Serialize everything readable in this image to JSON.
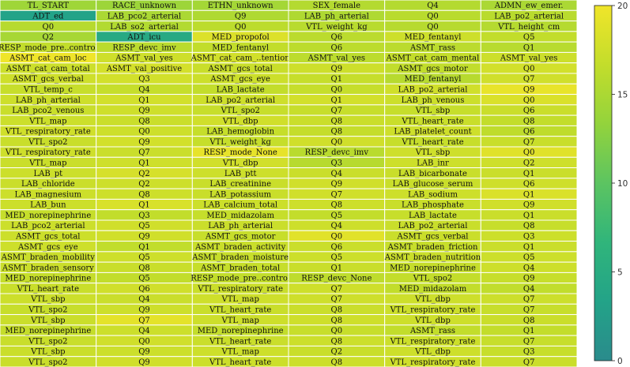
{
  "chart_data": {
    "type": "heatmap",
    "colormap": "viridis-subset (teal to yellow)",
    "cell_border_color": "#ffffff",
    "colorbar": {
      "min": 0,
      "max": 20,
      "ticks": [
        0,
        5,
        10,
        15,
        20
      ],
      "stops": [
        "#2a8b8c",
        "#23a388",
        "#30b57b",
        "#5cc461",
        "#93d33c",
        "#c3dd2b",
        "#f0e52a"
      ]
    },
    "cells": [
      [
        [
          "TL_START",
          14.2
        ],
        [
          "RACE_unknown",
          14.0
        ],
        [
          "ETHN_unknown",
          14.5
        ],
        [
          "SEX_female",
          15.6
        ],
        [
          "Q4",
          15.6
        ],
        [
          "ADMN_ew_emer.",
          15.0
        ]
      ],
      [
        [
          "ADT_ed",
          3.4
        ],
        [
          "LAB_pco2_arterial",
          15.0
        ],
        [
          "Q9",
          15.3
        ],
        [
          "LAB_ph_arterial",
          15.3
        ],
        [
          "Q0",
          16.0
        ],
        [
          "LAB_po2_arterial",
          16.0
        ]
      ],
      [
        [
          "Q0",
          15.8
        ],
        [
          "LAB_so2_arterial",
          15.5
        ],
        [
          "Q0",
          16.2
        ],
        [
          "VTL_weight_kg",
          15.9
        ],
        [
          "Q0",
          15.8
        ],
        [
          "VTL_height_cm",
          15.7
        ]
      ],
      [
        [
          "Q2",
          14.7
        ],
        [
          "ADT_icu",
          4.5
        ],
        [
          "MED_propofol",
          18.5
        ],
        [
          "Q6",
          16.1
        ],
        [
          "MED_fentanyl",
          17.4
        ],
        [
          "Q5",
          16.6
        ]
      ],
      [
        [
          "RESP_mode_pre..control",
          16.6
        ],
        [
          "RESP_devc_imv",
          16.1
        ],
        [
          "MED_fentanyl",
          16.6
        ],
        [
          "Q6",
          16.2
        ],
        [
          "ASMT_rass",
          16.1
        ],
        [
          "Q1",
          15.9
        ]
      ],
      [
        [
          "ASMT_cat_cam_loc",
          19.9
        ],
        [
          "ASMT_val_yes",
          17.5
        ],
        [
          "ASMT_cat_cam_..tention",
          17.7
        ],
        [
          "ASMT_val_yes",
          16.2
        ],
        [
          "ASMT_cat_cam_mental",
          16.7
        ],
        [
          "ASMT_val_yes",
          17.3
        ]
      ],
      [
        [
          "ASMT_cat_cam_total",
          17.3
        ],
        [
          "ASMT_val_positive",
          17.9
        ],
        [
          "ASMT_gcs_total",
          17.1
        ],
        [
          "Q9",
          17.4
        ],
        [
          "ASMT_gcs_motor",
          16.5
        ],
        [
          "Q0",
          17.8
        ]
      ],
      [
        [
          "ASMT_gcs_verbal",
          17.5
        ],
        [
          "Q3",
          17.8
        ],
        [
          "ASMT_gcs_eye",
          17.3
        ],
        [
          "Q1",
          16.9
        ],
        [
          "MED_fentanyl",
          15.8
        ],
        [
          "Q7",
          17.6
        ]
      ],
      [
        [
          "VTL_temp_c",
          17.0
        ],
        [
          "Q4",
          16.9
        ],
        [
          "LAB_lactate",
          16.7
        ],
        [
          "Q0",
          16.9
        ],
        [
          "LAB_po2_arterial",
          17.6
        ],
        [
          "Q9",
          19.4
        ]
      ],
      [
        [
          "LAB_ph_arterial",
          17.4
        ],
        [
          "Q1",
          17.8
        ],
        [
          "LAB_po2_arterial",
          17.5
        ],
        [
          "Q1",
          17.8
        ],
        [
          "LAB_ph_venous",
          17.3
        ],
        [
          "Q0",
          18.4
        ]
      ],
      [
        [
          "LAB_pco2_venous",
          17.1
        ],
        [
          "Q9",
          17.5
        ],
        [
          "VTL_spo2",
          17.0
        ],
        [
          "Q7",
          17.0
        ],
        [
          "VTL_sbp",
          16.9
        ],
        [
          "Q6",
          17.2
        ]
      ],
      [
        [
          "VTL_map",
          17.3
        ],
        [
          "Q8",
          17.2
        ],
        [
          "VTL_dbp",
          17.6
        ],
        [
          "Q8",
          17.2
        ],
        [
          "VTL_heart_rate",
          17.1
        ],
        [
          "Q8",
          16.7
        ]
      ],
      [
        [
          "VTL_respiratory_rate",
          17.6
        ],
        [
          "Q0",
          17.4
        ],
        [
          "LAB_hemoglobin",
          16.9
        ],
        [
          "Q8",
          16.8
        ],
        [
          "LAB_platelet_count",
          17.5
        ],
        [
          "Q6",
          16.4
        ]
      ],
      [
        [
          "VTL_spo2",
          17.1
        ],
        [
          "Q9",
          17.8
        ],
        [
          "VTL_weight_kg",
          16.9
        ],
        [
          "Q0",
          17.6
        ],
        [
          "VTL_heart_rate",
          17.0
        ],
        [
          "Q7",
          17.1
        ]
      ],
      [
        [
          "VTL_respiratory_rate",
          17.5
        ],
        [
          "Q7",
          17.2
        ],
        [
          "RESP_mode_None",
          19.3
        ],
        [
          "RESP_devc_imv",
          16.0
        ],
        [
          "VTL_sbp",
          17.5
        ],
        [
          "Q0",
          18.8
        ]
      ],
      [
        [
          "VTL_map",
          17.2
        ],
        [
          "Q1",
          17.5
        ],
        [
          "VTL_dbp",
          17.7
        ],
        [
          "Q3",
          15.8
        ],
        [
          "LAB_inr",
          17.4
        ],
        [
          "Q2",
          17.5
        ]
      ],
      [
        [
          "LAB_pt",
          17.3
        ],
        [
          "Q2",
          18.1
        ],
        [
          "LAB_ptt",
          17.4
        ],
        [
          "Q4",
          17.2
        ],
        [
          "LAB_bicarbonate",
          17.1
        ],
        [
          "Q1",
          17.2
        ]
      ],
      [
        [
          "LAB_chloride",
          17.2
        ],
        [
          "Q2",
          17.4
        ],
        [
          "LAB_creatinine",
          17.1
        ],
        [
          "Q9",
          17.6
        ],
        [
          "LAB_glucose_serum",
          17.1
        ],
        [
          "Q6",
          17.5
        ]
      ],
      [
        [
          "LAB_magnesium",
          17.3
        ],
        [
          "Q8",
          17.4
        ],
        [
          "LAB_potassium",
          17.1
        ],
        [
          "Q7",
          17.6
        ],
        [
          "LAB_sodium",
          17.4
        ],
        [
          "Q1",
          18.4
        ]
      ],
      [
        [
          "LAB_bun",
          17.3
        ],
        [
          "Q1",
          18.2
        ],
        [
          "LAB_calcium_total",
          17.3
        ],
        [
          "Q8",
          17.4
        ],
        [
          "LAB_phosphate",
          17.1
        ],
        [
          "Q9",
          17.6
        ]
      ],
      [
        [
          "MED_norepinephrine",
          16.9
        ],
        [
          "Q3",
          16.6
        ],
        [
          "MED_midazolam",
          16.9
        ],
        [
          "Q5",
          16.7
        ],
        [
          "LAB_lactate",
          17.0
        ],
        [
          "Q1",
          17.2
        ]
      ],
      [
        [
          "LAB_pco2_arterial",
          17.3
        ],
        [
          "Q5",
          17.6
        ],
        [
          "LAB_ph_arterial",
          17.2
        ],
        [
          "Q4",
          17.4
        ],
        [
          "LAB_po2_arterial",
          17.1
        ],
        [
          "Q8",
          17.0
        ]
      ],
      [
        [
          "ASMT_gcs_total",
          17.3
        ],
        [
          "Q9",
          17.6
        ],
        [
          "ASMT_gcs_motor",
          17.0
        ],
        [
          "Q0",
          18.9
        ],
        [
          "ASMT_gcs_verbal",
          17.2
        ],
        [
          "Q3",
          17.3
        ]
      ],
      [
        [
          "ASMT_gcs_eye",
          17.4
        ],
        [
          "Q1",
          16.5
        ],
        [
          "ASMT_braden_activity",
          17.1
        ],
        [
          "Q6",
          17.2
        ],
        [
          "ASMT_braden_friction",
          17.0
        ],
        [
          "Q1",
          17.2
        ]
      ],
      [
        [
          "ASMT_braden_mobility",
          17.2
        ],
        [
          "Q5",
          17.4
        ],
        [
          "ASMT_braden_moisture",
          17.0
        ],
        [
          "Q5",
          17.3
        ],
        [
          "ASMT_braden_nutrition",
          17.2
        ],
        [
          "Q5",
          17.3
        ]
      ],
      [
        [
          "ASMT_braden_sensory",
          17.2
        ],
        [
          "Q8",
          17.1
        ],
        [
          "ASMT_braden_total",
          16.9
        ],
        [
          "Q1",
          17.1
        ],
        [
          "MED_norepinephrine",
          16.8
        ],
        [
          "Q4",
          17.4
        ]
      ],
      [
        [
          "MED_norepinephrine",
          16.8
        ],
        [
          "Q5",
          16.6
        ],
        [
          "RESP_mode_pre..control",
          16.6
        ],
        [
          "RESP_devc_None",
          16.3
        ],
        [
          "VTL_spo2",
          16.7
        ],
        [
          "Q9",
          17.0
        ]
      ],
      [
        [
          "VTL_heart_rate",
          17.1
        ],
        [
          "Q6",
          17.6
        ],
        [
          "VTL_respiratory_rate",
          17.2
        ],
        [
          "Q7",
          17.5
        ],
        [
          "MED_midazolam",
          16.6
        ],
        [
          "Q4",
          16.5
        ]
      ],
      [
        [
          "VTL_sbp",
          17.3
        ],
        [
          "Q4",
          17.2
        ],
        [
          "VTL_map",
          17.5
        ],
        [
          "Q7",
          17.5
        ],
        [
          "VTL_dbp",
          17.4
        ],
        [
          "Q7",
          17.3
        ]
      ],
      [
        [
          "VTL_spo2",
          17.0
        ],
        [
          "Q9",
          17.4
        ],
        [
          "VTL_heart_rate",
          17.1
        ],
        [
          "Q8",
          17.2
        ],
        [
          "VTL_respiratory_rate",
          17.3
        ],
        [
          "Q7",
          17.0
        ]
      ],
      [
        [
          "VTL_sbp",
          17.2
        ],
        [
          "Q7",
          19.1
        ],
        [
          "VTL_map",
          17.4
        ],
        [
          "Q8",
          17.5
        ],
        [
          "VTL_dbp",
          17.4
        ],
        [
          "Q8",
          17.2
        ]
      ],
      [
        [
          "MED_norepinephrine",
          16.8
        ],
        [
          "Q4",
          17.3
        ],
        [
          "MED_norepinephrine",
          16.7
        ],
        [
          "Q0",
          17.0
        ],
        [
          "ASMT_rass",
          16.6
        ],
        [
          "Q1",
          16.7
        ]
      ],
      [
        [
          "VTL_spo2",
          17.1
        ],
        [
          "Q0",
          17.6
        ],
        [
          "VTL_heart_rate",
          17.2
        ],
        [
          "Q8",
          17.3
        ],
        [
          "VTL_respiratory_rate",
          17.3
        ],
        [
          "Q7",
          17.0
        ]
      ],
      [
        [
          "VTL_sbp",
          17.2
        ],
        [
          "Q9",
          17.3
        ],
        [
          "VTL_map",
          17.4
        ],
        [
          "Q2",
          17.1
        ],
        [
          "VTL_dbp",
          17.4
        ],
        [
          "Q3",
          17.0
        ]
      ],
      [
        [
          "VTL_spo2",
          17.1
        ],
        [
          "Q9",
          17.6
        ],
        [
          "VTL_heart_rate",
          17.3
        ],
        [
          "Q8",
          17.3
        ],
        [
          "VTL_respiratory_rate",
          17.5
        ],
        [
          "Q7",
          17.2
        ]
      ]
    ]
  }
}
